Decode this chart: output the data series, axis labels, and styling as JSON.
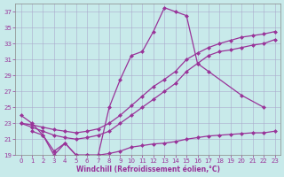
{
  "xlabel": "Windchill (Refroidissement éolien,°C)",
  "line_color": "#993399",
  "bg_color": "#c8eaea",
  "grid_color": "#aaaacc",
  "ylim": [
    19,
    38
  ],
  "xlim": [
    -0.5,
    23.5
  ],
  "yticks": [
    19,
    21,
    23,
    25,
    27,
    29,
    31,
    33,
    35,
    37
  ],
  "markersize": 2.5,
  "series": [
    {
      "x": [
        0,
        1,
        2,
        3,
        4,
        5,
        6,
        7,
        8,
        9,
        10,
        11,
        12,
        13,
        14,
        15,
        16,
        17,
        20,
        22
      ],
      "y": [
        24,
        23,
        21.5,
        19.5,
        20.5,
        19,
        19,
        19,
        25,
        28.5,
        31.5,
        32,
        34.5,
        37.5,
        37,
        36.5,
        30.5,
        29.5,
        26.5,
        25
      ]
    },
    {
      "x": [
        0,
        1,
        2,
        3,
        4,
        5,
        6,
        7,
        8,
        9,
        10,
        11,
        12,
        13,
        14,
        15,
        16,
        17,
        18,
        19,
        20,
        21,
        22,
        23
      ],
      "y": [
        23,
        22.8,
        22.5,
        22.2,
        22.0,
        21.8,
        22.0,
        22.3,
        23.0,
        24.0,
        25.2,
        26.4,
        27.6,
        28.5,
        29.5,
        31.0,
        31.8,
        32.5,
        33.0,
        33.4,
        33.8,
        34.0,
        34.2,
        34.5
      ]
    },
    {
      "x": [
        0,
        1,
        2,
        3,
        4,
        5,
        6,
        7,
        8,
        9,
        10,
        11,
        12,
        13,
        14,
        15,
        16,
        17,
        18,
        19,
        20,
        21,
        22,
        23
      ],
      "y": [
        23,
        22.5,
        22.0,
        21.5,
        21.2,
        21.0,
        21.2,
        21.5,
        22.0,
        23.0,
        24.0,
        25.0,
        26.0,
        27.0,
        28.0,
        29.5,
        30.5,
        31.5,
        32.0,
        32.2,
        32.5,
        32.8,
        33.0,
        33.5
      ]
    },
    {
      "x": [
        1,
        2,
        3,
        4,
        5,
        6,
        7,
        8,
        9,
        10,
        11,
        12,
        13,
        14,
        15,
        16,
        17,
        18,
        19,
        20,
        21,
        22,
        23
      ],
      "y": [
        22,
        21.5,
        19.0,
        20.5,
        19.0,
        19.0,
        19.0,
        19.2,
        19.5,
        20.0,
        20.2,
        20.4,
        20.5,
        20.7,
        21.0,
        21.2,
        21.4,
        21.5,
        21.6,
        21.7,
        21.8,
        21.8,
        22.0
      ]
    }
  ]
}
